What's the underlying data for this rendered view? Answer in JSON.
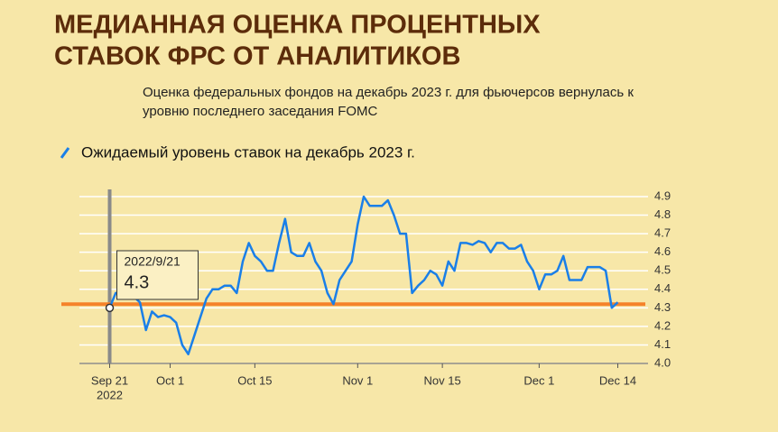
{
  "chart_data": {
    "type": "line",
    "title": [
      "МЕДИАННАЯ ОЦЕНКА ПРОЦЕНТНЫХ",
      "СТАВОК ФРС ОТ АНАЛИТИКОВ"
    ],
    "subtitle": [
      "Оценка федеральных фондов на декабрь 2023 г. для фьючерсов вернулась к",
      "уровню последнего заседания FOMC"
    ],
    "x": [
      "2022-09-21",
      "2022-09-22",
      "2022-09-23",
      "2022-09-24",
      "2022-09-25",
      "2022-09-26",
      "2022-09-27",
      "2022-09-28",
      "2022-09-29",
      "2022-09-30",
      "2022-10-01",
      "2022-10-02",
      "2022-10-03",
      "2022-10-04",
      "2022-10-05",
      "2022-10-06",
      "2022-10-07",
      "2022-10-08",
      "2022-10-09",
      "2022-10-10",
      "2022-10-11",
      "2022-10-12",
      "2022-10-13",
      "2022-10-14",
      "2022-10-15",
      "2022-10-16",
      "2022-10-17",
      "2022-10-18",
      "2022-10-19",
      "2022-10-20",
      "2022-10-21",
      "2022-10-22",
      "2022-10-23",
      "2022-10-24",
      "2022-10-25",
      "2022-10-26",
      "2022-10-27",
      "2022-10-28",
      "2022-10-29",
      "2022-10-30",
      "2022-10-31",
      "2022-11-01",
      "2022-11-02",
      "2022-11-03",
      "2022-11-04",
      "2022-11-05",
      "2022-11-06",
      "2022-11-07",
      "2022-11-08",
      "2022-11-09",
      "2022-11-10",
      "2022-11-11",
      "2022-11-12",
      "2022-11-13",
      "2022-11-14",
      "2022-11-15",
      "2022-11-16",
      "2022-11-17",
      "2022-11-18",
      "2022-11-19",
      "2022-11-20",
      "2022-11-21",
      "2022-11-22",
      "2022-11-23",
      "2022-11-24",
      "2022-11-25",
      "2022-11-26",
      "2022-11-27",
      "2022-11-28",
      "2022-11-29",
      "2022-11-30",
      "2022-12-01",
      "2022-12-02",
      "2022-12-03",
      "2022-12-04",
      "2022-12-05",
      "2022-12-06",
      "2022-12-07",
      "2022-12-08",
      "2022-12-09",
      "2022-12-10",
      "2022-12-11",
      "2022-12-12",
      "2022-12-13",
      "2022-12-14"
    ],
    "series": [
      {
        "name": "Ожидаемый уровень ставок на декабрь 2023 г.",
        "color": "#1a7fe8",
        "values": [
          4.3,
          4.38,
          4.38,
          4.36,
          4.36,
          4.33,
          4.18,
          4.28,
          4.25,
          4.26,
          4.25,
          4.22,
          4.1,
          4.05,
          4.15,
          4.25,
          4.35,
          4.4,
          4.4,
          4.42,
          4.42,
          4.38,
          4.55,
          4.65,
          4.58,
          4.55,
          4.5,
          4.5,
          4.65,
          4.78,
          4.6,
          4.58,
          4.58,
          4.65,
          4.55,
          4.5,
          4.38,
          4.32,
          4.45,
          4.5,
          4.55,
          4.75,
          4.9,
          4.85,
          4.85,
          4.85,
          4.88,
          4.8,
          4.7,
          4.7,
          4.38,
          4.42,
          4.45,
          4.5,
          4.48,
          4.42,
          4.55,
          4.5,
          4.65,
          4.65,
          4.64,
          4.66,
          4.65,
          4.6,
          4.65,
          4.65,
          4.62,
          4.62,
          4.64,
          4.55,
          4.5,
          4.4,
          4.48,
          4.48,
          4.5,
          4.58,
          4.45,
          4.45,
          4.45,
          4.52,
          4.52,
          4.52,
          4.5,
          4.3,
          4.33
        ]
      }
    ],
    "reference_line": {
      "value": 4.32,
      "color": "#f5822a"
    },
    "annotation": {
      "date": "2022/9/21",
      "value": "4.3"
    },
    "xlim": [
      "2022-09-16",
      "2022-12-19"
    ],
    "xticks": [
      {
        "value": "2022-09-21",
        "label": "Sep 21"
      },
      {
        "value": "2022-10-01",
        "label": "Oct 1"
      },
      {
        "value": "2022-10-15",
        "label": "Oct 15"
      },
      {
        "value": "2022-11-01",
        "label": "Nov 1"
      },
      {
        "value": "2022-11-15",
        "label": "Nov 15"
      },
      {
        "value": "2022-12-01",
        "label": "Dec 1"
      },
      {
        "value": "2022-12-14",
        "label": "Dec 14"
      }
    ],
    "x_year": "2022",
    "ylim": [
      4.0,
      4.9
    ],
    "yticks": [
      {
        "value": 4.0,
        "label": "4.0"
      },
      4.1,
      4.2,
      4.3,
      4.4,
      4.5,
      4.6,
      4.7,
      4.8,
      4.9
    ],
    "grid": true
  }
}
